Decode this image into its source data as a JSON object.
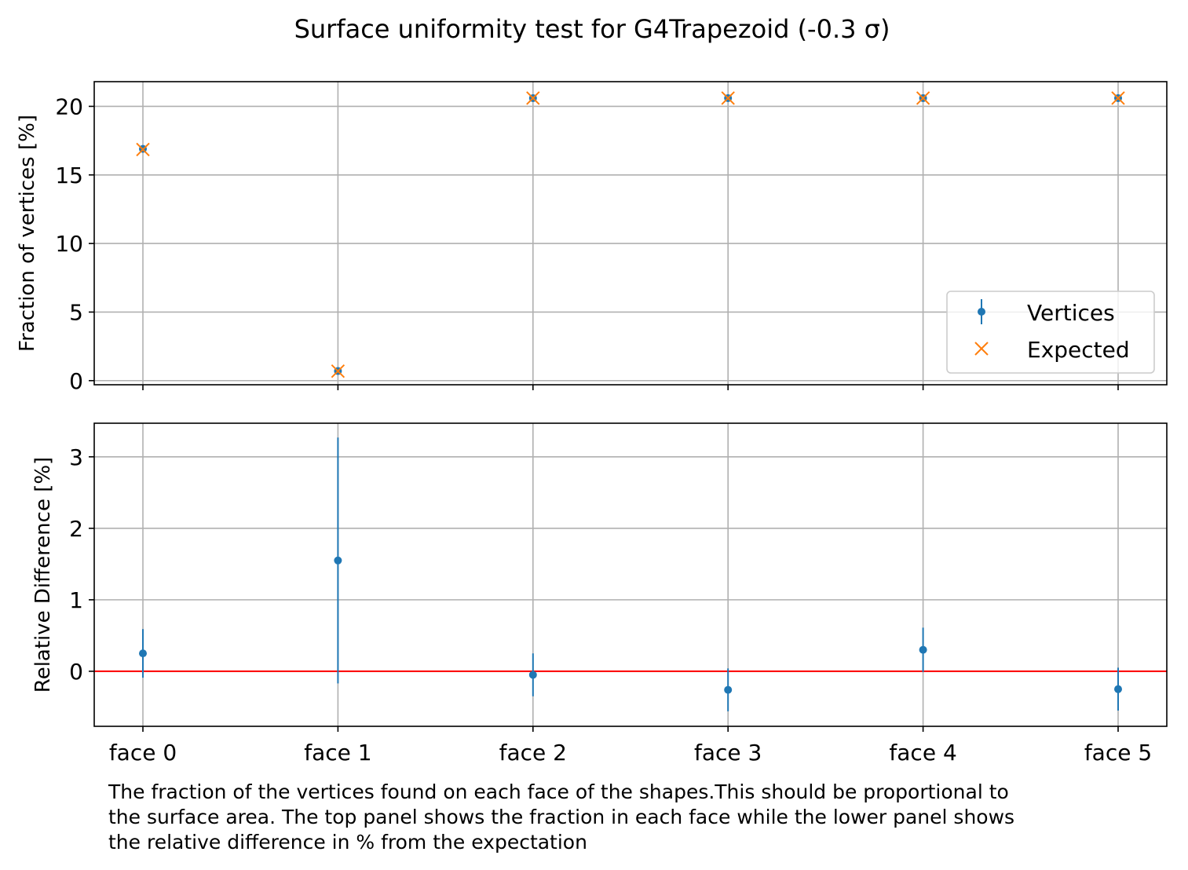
{
  "chart_data": [
    {
      "type": "scatter",
      "title": "Surface uniformity test for G4Trapezoid (-0.3 σ)",
      "ylabel": "Fraction of vertices [%]",
      "categories": [
        "face 0",
        "face 1",
        "face 2",
        "face 3",
        "face 4",
        "face 5"
      ],
      "ylim": [
        -0.3,
        21.8
      ],
      "yticks": [
        0,
        5,
        10,
        15,
        20
      ],
      "grid": true,
      "legend_position": "lower-right",
      "series": [
        {
          "name": "Vertices",
          "marker": "dot-with-errorbar",
          "color": "#1f77b4",
          "values": [
            16.9,
            0.7,
            20.6,
            20.6,
            20.6,
            20.6
          ],
          "errors": [
            0.06,
            0.01,
            0.07,
            0.07,
            0.07,
            0.07
          ]
        },
        {
          "name": "Expected",
          "marker": "x",
          "color": "#ff7f0e",
          "values": [
            16.85,
            0.69,
            20.6,
            20.6,
            20.6,
            20.6
          ]
        }
      ]
    },
    {
      "type": "scatter",
      "ylabel": "Relative Difference [%]",
      "categories": [
        "face 0",
        "face 1",
        "face 2",
        "face 3",
        "face 4",
        "face 5"
      ],
      "ylim": [
        -0.77,
        3.47
      ],
      "yticks": [
        0,
        1,
        2,
        3
      ],
      "grid": true,
      "reference_line": {
        "y": 0,
        "color": "#ff0000"
      },
      "series": [
        {
          "name": "Vertices",
          "color": "#1f77b4",
          "values": [
            0.25,
            1.55,
            -0.05,
            -0.26,
            0.3,
            -0.25
          ],
          "errors": [
            0.34,
            1.72,
            0.3,
            0.3,
            0.31,
            0.3
          ]
        }
      ]
    }
  ],
  "caption": {
    "lines": [
      "The fraction of the vertices found on each face of the shapes.This should be proportional to",
      "the surface area. The top panel shows the fraction in each face while the lower panel shows",
      "the relative difference in % from the expectation"
    ]
  }
}
